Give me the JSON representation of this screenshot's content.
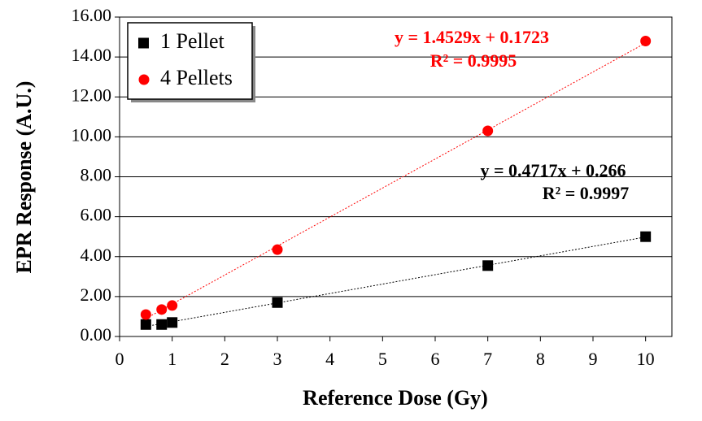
{
  "chart_data": {
    "type": "scatter",
    "x_label": "Reference Dose (Gy)",
    "y_label": "EPR Response (A.U.)",
    "xlim": [
      0,
      10.5
    ],
    "xticks": [
      0,
      1,
      2,
      3,
      4,
      5,
      6,
      7,
      8,
      9,
      10
    ],
    "ylim": [
      0,
      16
    ],
    "yticks": [
      {
        "value": 0,
        "label": "0.00"
      },
      {
        "value": 2,
        "label": "2.00"
      },
      {
        "value": 4,
        "label": "4.00"
      },
      {
        "value": 6,
        "label": "6.00"
      },
      {
        "value": 8,
        "label": "8.00"
      },
      {
        "value": 10,
        "label": "10.00"
      },
      {
        "value": 12,
        "label": "12.00"
      },
      {
        "value": 14,
        "label": "14.00"
      },
      {
        "value": 16,
        "label": "16.00"
      }
    ],
    "grid": true,
    "legend": "top-left",
    "series": [
      {
        "name": "1 Pellet",
        "color": "#000000",
        "marker": "square",
        "x": [
          0.5,
          0.8,
          1,
          3,
          7,
          10
        ],
        "values": [
          0.6,
          0.6,
          0.7,
          1.7,
          3.55,
          5.0
        ],
        "trendline": {
          "slope": 0.4717,
          "intercept": 0.266,
          "equation": "y = 0.4717x + 0.266",
          "r2": "R² = 0.9997"
        }
      },
      {
        "name": "4 Pellets",
        "color": "#ff0000",
        "marker": "circle",
        "x": [
          0.5,
          0.8,
          1,
          3,
          7,
          10
        ],
        "values": [
          1.1,
          1.35,
          1.55,
          4.35,
          10.3,
          14.8
        ],
        "trendline": {
          "slope": 1.4529,
          "intercept": 0.1723,
          "equation": "y = 1.4529x + 0.1723",
          "r2": "R² = 0.9995"
        }
      }
    ]
  }
}
